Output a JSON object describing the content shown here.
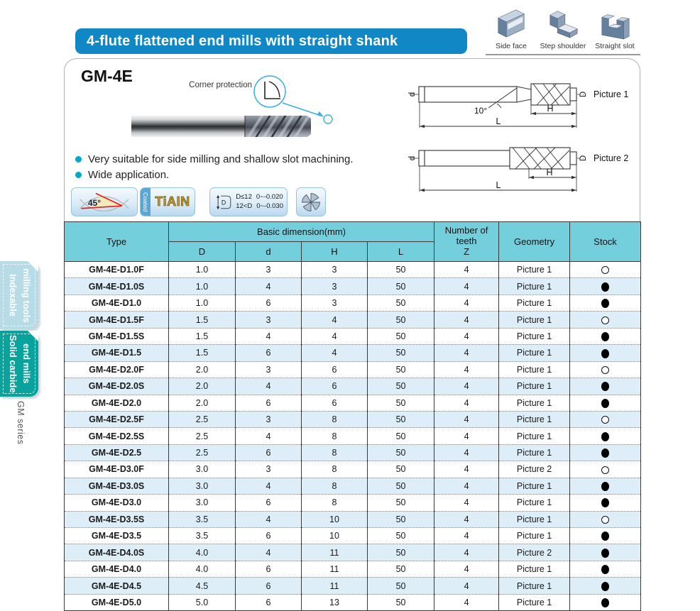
{
  "colors": {
    "title_bar_blue": "#1287c6",
    "table_header_cyan": "#74cfdd",
    "row_alt_blue": "#ddeef8",
    "sidebar_teal": "#09a39d",
    "sidebar_light_blue": "#b7dbe7",
    "accent_cyan": "#3ab0e0",
    "bullet_cyan": "#00a9c9",
    "coating_gold": "#caa12d"
  },
  "header": {
    "title": "4-flute flattened end mills with straight shank",
    "workpiece_icons": {
      "side_face": "Side face",
      "step_shoulder": "Step shoulder",
      "straight_slot": "Straight slot"
    }
  },
  "sidebar": {
    "tab_indexable": "Indexable\nmilling tools",
    "tab_solid_carbide": "Solid carbide\nend mills",
    "series": "GM series"
  },
  "product": {
    "model": "GM-4E",
    "callout": "Corner protection",
    "features": [
      "Very suitable for side milling and shallow slot machining.",
      "Wide application."
    ],
    "badges": {
      "helix_angle": "45°",
      "coated_label": "Coated",
      "coating_name": "TiAIN",
      "tolerance_symbol": "D",
      "tolerance_line1_cond": "D≤12",
      "tolerance_line1_val": "0~-0.020",
      "tolerance_line2_cond": "12<D",
      "tolerance_line2_val": "0~-0.030"
    }
  },
  "drawings": {
    "picture1": {
      "caption": "Picture 1",
      "label_d": "d",
      "label_D": "D",
      "label_H": "H",
      "label_L": "L",
      "angle": "10°"
    },
    "picture2": {
      "caption": "Picture 2",
      "label_d": "d",
      "label_D": "D",
      "label_H": "H",
      "label_L": "L"
    }
  },
  "table": {
    "headers": {
      "type": "Type",
      "basic_dimension": "Basic dimension(mm)",
      "D": "D",
      "d": "d",
      "H": "H",
      "L": "L",
      "teeth": "Number of\nteeth\nZ",
      "geometry": "Geometry",
      "stock": "Stock"
    },
    "stock_symbols": {
      "open": "○",
      "filled": "●"
    },
    "rows": [
      {
        "type": "GM-4E-D1.0F",
        "D": "1.0",
        "d": "3",
        "H": "3",
        "L": "50",
        "Z": "4",
        "geometry": "Picture 1",
        "stock": "open"
      },
      {
        "type": "GM-4E-D1.0S",
        "D": "1.0",
        "d": "4",
        "H": "3",
        "L": "50",
        "Z": "4",
        "geometry": "Picture 1",
        "stock": "filled"
      },
      {
        "type": "GM-4E-D1.0",
        "D": "1.0",
        "d": "6",
        "H": "3",
        "L": "50",
        "Z": "4",
        "geometry": "Picture 1",
        "stock": "filled"
      },
      {
        "type": "GM-4E-D1.5F",
        "D": "1.5",
        "d": "3",
        "H": "4",
        "L": "50",
        "Z": "4",
        "geometry": "Picture 1",
        "stock": "open"
      },
      {
        "type": "GM-4E-D1.5S",
        "D": "1.5",
        "d": "4",
        "H": "4",
        "L": "50",
        "Z": "4",
        "geometry": "Picture 1",
        "stock": "filled"
      },
      {
        "type": "GM-4E-D1.5",
        "D": "1.5",
        "d": "6",
        "H": "4",
        "L": "50",
        "Z": "4",
        "geometry": "Picture 1",
        "stock": "filled"
      },
      {
        "type": "GM-4E-D2.0F",
        "D": "2.0",
        "d": "3",
        "H": "6",
        "L": "50",
        "Z": "4",
        "geometry": "Picture 1",
        "stock": "open"
      },
      {
        "type": "GM-4E-D2.0S",
        "D": "2.0",
        "d": "4",
        "H": "6",
        "L": "50",
        "Z": "4",
        "geometry": "Picture 1",
        "stock": "filled"
      },
      {
        "type": "GM-4E-D2.0",
        "D": "2.0",
        "d": "6",
        "H": "6",
        "L": "50",
        "Z": "4",
        "geometry": "Picture 1",
        "stock": "filled"
      },
      {
        "type": "GM-4E-D2.5F",
        "D": "2.5",
        "d": "3",
        "H": "8",
        "L": "50",
        "Z": "4",
        "geometry": "Picture 1",
        "stock": "open"
      },
      {
        "type": "GM-4E-D2.5S",
        "D": "2.5",
        "d": "4",
        "H": "8",
        "L": "50",
        "Z": "4",
        "geometry": "Picture 1",
        "stock": "filled"
      },
      {
        "type": "GM-4E-D2.5",
        "D": "2.5",
        "d": "6",
        "H": "8",
        "L": "50",
        "Z": "4",
        "geometry": "Picture 1",
        "stock": "filled"
      },
      {
        "type": "GM-4E-D3.0F",
        "D": "3.0",
        "d": "3",
        "H": "8",
        "L": "50",
        "Z": "4",
        "geometry": "Picture 2",
        "stock": "open"
      },
      {
        "type": "GM-4E-D3.0S",
        "D": "3.0",
        "d": "4",
        "H": "8",
        "L": "50",
        "Z": "4",
        "geometry": "Picture 1",
        "stock": "filled"
      },
      {
        "type": "GM-4E-D3.0",
        "D": "3.0",
        "d": "6",
        "H": "8",
        "L": "50",
        "Z": "4",
        "geometry": "Picture 1",
        "stock": "filled"
      },
      {
        "type": "GM-4E-D3.5S",
        "D": "3.5",
        "d": "4",
        "H": "10",
        "L": "50",
        "Z": "4",
        "geometry": "Picture 1",
        "stock": "open"
      },
      {
        "type": "GM-4E-D3.5",
        "D": "3.5",
        "d": "6",
        "H": "10",
        "L": "50",
        "Z": "4",
        "geometry": "Picture 1",
        "stock": "filled"
      },
      {
        "type": "GM-4E-D4.0S",
        "D": "4.0",
        "d": "4",
        "H": "11",
        "L": "50",
        "Z": "4",
        "geometry": "Picture 2",
        "stock": "filled"
      },
      {
        "type": "GM-4E-D4.0",
        "D": "4.0",
        "d": "6",
        "H": "11",
        "L": "50",
        "Z": "4",
        "geometry": "Picture 1",
        "stock": "filled"
      },
      {
        "type": "GM-4E-D4.5",
        "D": "4.5",
        "d": "6",
        "H": "11",
        "L": "50",
        "Z": "4",
        "geometry": "Picture 1",
        "stock": "filled"
      },
      {
        "type": "GM-4E-D5.0",
        "D": "5.0",
        "d": "6",
        "H": "13",
        "L": "50",
        "Z": "4",
        "geometry": "Picture 1",
        "stock": "filled"
      }
    ]
  }
}
